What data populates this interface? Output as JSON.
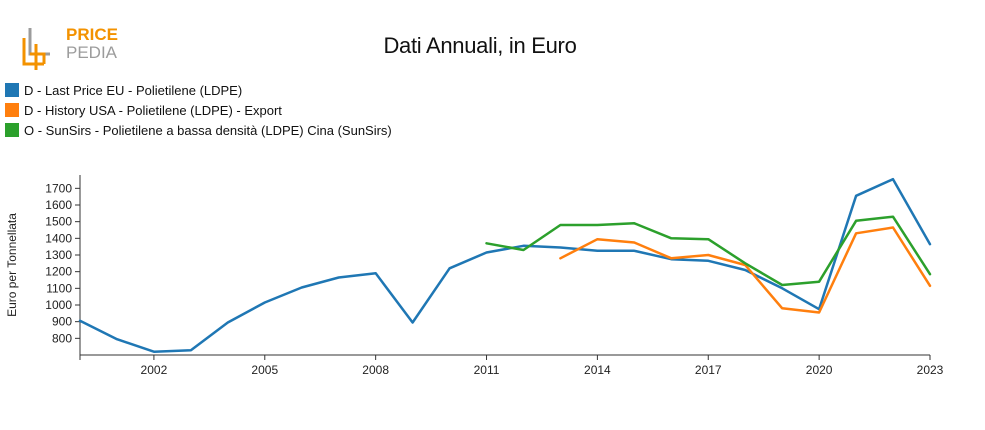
{
  "logo": {
    "line1": "PRICE",
    "line2": "PEDIA",
    "color_accent": "#f39200",
    "color_gray": "#9c9c9c"
  },
  "chart_data": {
    "type": "line",
    "title": "Dati Annuali, in Euro",
    "xlabel": "",
    "ylabel": "Euro per Tonnellata",
    "xlim": [
      2000,
      2023
    ],
    "ylim": [
      700,
      1780
    ],
    "yticks": [
      800,
      900,
      1000,
      1100,
      1200,
      1300,
      1400,
      1500,
      1600,
      1700
    ],
    "xticks": [
      2002,
      2005,
      2008,
      2011,
      2014,
      2017,
      2020,
      2023
    ],
    "legend_position": "top-left",
    "grid": false,
    "series": [
      {
        "name": "D - Last Price EU - Polietilene (LDPE)",
        "color": "#1f77b4",
        "x": [
          2000,
          2001,
          2002,
          2003,
          2004,
          2005,
          2006,
          2007,
          2008,
          2009,
          2010,
          2011,
          2012,
          2013,
          2014,
          2015,
          2016,
          2017,
          2018,
          2019,
          2020,
          2021,
          2022,
          2023
        ],
        "y": [
          905,
          795,
          720,
          728,
          895,
          1015,
          1105,
          1165,
          1190,
          895,
          1220,
          1315,
          1355,
          1345,
          1325,
          1325,
          1275,
          1265,
          1210,
          1100,
          975,
          1655,
          1755,
          1365
        ]
      },
      {
        "name": "D - History USA - Polietilene (LDPE) - Export",
        "color": "#ff7f0e",
        "x": [
          2013,
          2014,
          2015,
          2016,
          2017,
          2018,
          2019,
          2020,
          2021,
          2022,
          2023
        ],
        "y": [
          1280,
          1395,
          1375,
          1280,
          1300,
          1240,
          980,
          955,
          1430,
          1465,
          1115
        ]
      },
      {
        "name": "O - SunSirs - Polietilene a bassa densità (LDPE) Cina (SunSirs)",
        "color": "#2ca02c",
        "x": [
          2011,
          2012,
          2013,
          2014,
          2015,
          2016,
          2017,
          2018,
          2019,
          2020,
          2021,
          2022,
          2023
        ],
        "y": [
          1370,
          1330,
          1480,
          1480,
          1490,
          1400,
          1395,
          1250,
          1120,
          1140,
          1505,
          1530,
          1185
        ]
      }
    ]
  }
}
